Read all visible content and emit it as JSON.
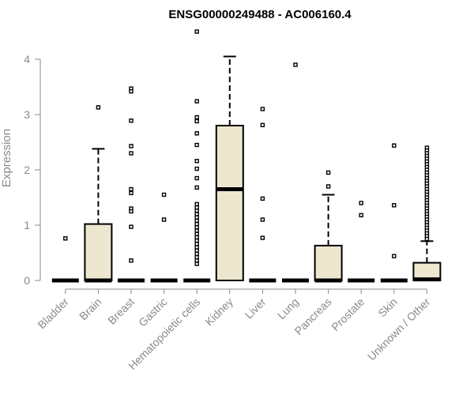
{
  "chart_data": {
    "type": "box",
    "title": "ENSG00000249488 - AC006160.4",
    "xlabel": "",
    "ylabel": "Expression",
    "ylim": [
      0,
      4.5
    ],
    "yticks": [
      0,
      1,
      2,
      3,
      4
    ],
    "grid": false,
    "colors": {
      "box_fill": "#ede7d0",
      "stroke": "#000000",
      "axis": "#8a8a8a"
    },
    "categories": [
      "Bladder",
      "Brain",
      "Breast",
      "Gastric",
      "Hematopoietic cells",
      "Kidney",
      "Liver",
      "Lung",
      "Pancreas",
      "Prostate",
      "Skin",
      "Unknown / Other"
    ],
    "boxes": [
      {
        "min": 0,
        "q1": 0,
        "median": 0,
        "q3": 0,
        "max": 0,
        "outliers": [
          0.76
        ]
      },
      {
        "min": 0,
        "q1": 0,
        "median": 0,
        "q3": 1.02,
        "max": 2.38,
        "outliers": [
          3.13
        ]
      },
      {
        "min": 0,
        "q1": 0,
        "median": 0,
        "q3": 0,
        "max": 0,
        "outliers": [
          3.47,
          3.42,
          2.89,
          2.43,
          2.3,
          1.65,
          1.58,
          1.3,
          1.25,
          0.97,
          0.36
        ]
      },
      {
        "min": 0,
        "q1": 0,
        "median": 0,
        "q3": 0,
        "max": 0,
        "outliers": [
          1.55,
          1.1
        ]
      },
      {
        "min": 0,
        "q1": 0,
        "median": 0,
        "q3": 0,
        "max": 0,
        "outliers": [
          4.5,
          3.24,
          2.95,
          2.88,
          2.66,
          2.45,
          2.16,
          2.02,
          1.85,
          1.68,
          1.38,
          1.32,
          1.26,
          1.2,
          1.14,
          1.08,
          1.02,
          0.96,
          0.9,
          0.84,
          0.78,
          0.72,
          0.66,
          0.6,
          0.54,
          0.48,
          0.42,
          0.36,
          0.3
        ]
      },
      {
        "min": 0,
        "q1": 0,
        "median": 1.65,
        "q3": 2.8,
        "max": 4.05,
        "outliers": []
      },
      {
        "min": 0,
        "q1": 0,
        "median": 0,
        "q3": 0,
        "max": 0,
        "outliers": [
          3.1,
          2.81,
          1.48,
          1.1,
          0.77
        ]
      },
      {
        "min": 0,
        "q1": 0,
        "median": 0,
        "q3": 0,
        "max": 0,
        "outliers": [
          3.9
        ]
      },
      {
        "min": 0,
        "q1": 0,
        "median": 0,
        "q3": 0.63,
        "max": 1.55,
        "outliers": [
          1.95,
          1.7
        ]
      },
      {
        "min": 0,
        "q1": 0,
        "median": 0,
        "q3": 0,
        "max": 0,
        "outliers": [
          1.4,
          1.18
        ]
      },
      {
        "min": 0,
        "q1": 0,
        "median": 0,
        "q3": 0,
        "max": 0,
        "outliers": [
          2.44,
          1.36,
          0.44
        ]
      },
      {
        "min": 0,
        "q1": 0,
        "median": 0.02,
        "q3": 0.32,
        "max": 0.71,
        "outliers": [
          2.4,
          2.35,
          2.3,
          2.25,
          2.2,
          2.15,
          2.1,
          2.05,
          2.0,
          1.95,
          1.9,
          1.85,
          1.8,
          1.75,
          1.7,
          1.65,
          1.6,
          1.55,
          1.5,
          1.45,
          1.4,
          1.35,
          1.3,
          1.25,
          1.2,
          1.15,
          1.1,
          1.05,
          1.0,
          0.95,
          0.9,
          0.85,
          0.8,
          0.75
        ]
      }
    ]
  }
}
